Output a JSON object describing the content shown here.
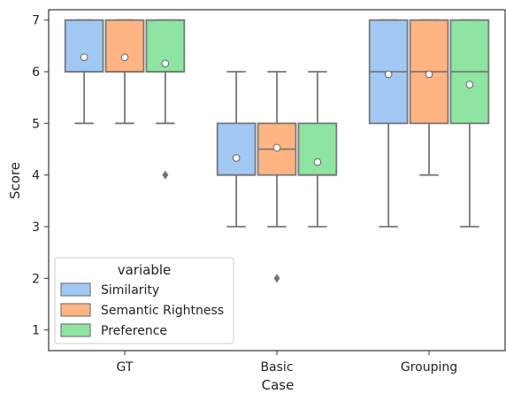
{
  "chart_data": {
    "type": "box",
    "xlabel": "Case",
    "ylabel": "Score",
    "ylim": [
      0.6,
      7.2
    ],
    "yticks": [
      1,
      2,
      3,
      4,
      5,
      6,
      7
    ],
    "categories": [
      "GT",
      "Basic",
      "Grouping"
    ],
    "grid": false,
    "legend": {
      "title": "variable",
      "placement": "lower-left"
    },
    "series": [
      {
        "name": "Similarity",
        "color": "#a1c9f4",
        "boxes": [
          {
            "whislo": 5,
            "q1": 6,
            "med": 6,
            "q3": 7,
            "whishi": 7,
            "mean": 6.28,
            "fliers": []
          },
          {
            "whislo": 3,
            "q1": 4,
            "med": 4,
            "q3": 5,
            "whishi": 6,
            "mean": 4.33,
            "fliers": []
          },
          {
            "whislo": 3,
            "q1": 5,
            "med": 6,
            "q3": 7,
            "whishi": 7,
            "mean": 5.95,
            "fliers": []
          }
        ]
      },
      {
        "name": "Semantic Rightness",
        "color": "#ffb482",
        "boxes": [
          {
            "whislo": 5,
            "q1": 6,
            "med": 6,
            "q3": 7,
            "whishi": 7,
            "mean": 6.28,
            "fliers": []
          },
          {
            "whislo": 3,
            "q1": 4,
            "med": 4.5,
            "q3": 5,
            "whishi": 6,
            "mean": 4.53,
            "fliers": [
              2
            ]
          },
          {
            "whislo": 4,
            "q1": 5,
            "med": 6,
            "q3": 7,
            "whishi": 7,
            "mean": 5.95,
            "fliers": []
          }
        ]
      },
      {
        "name": "Preference",
        "color": "#8de5a1",
        "boxes": [
          {
            "whislo": 5,
            "q1": 6,
            "med": 6,
            "q3": 7,
            "whishi": 7,
            "mean": 6.16,
            "fliers": [
              4
            ]
          },
          {
            "whislo": 3,
            "q1": 4,
            "med": 4,
            "q3": 5,
            "whishi": 6,
            "mean": 4.25,
            "fliers": []
          },
          {
            "whislo": 3,
            "q1": 5,
            "med": 6,
            "q3": 7,
            "whishi": 7,
            "mean": 5.75,
            "fliers": []
          }
        ]
      }
    ]
  }
}
